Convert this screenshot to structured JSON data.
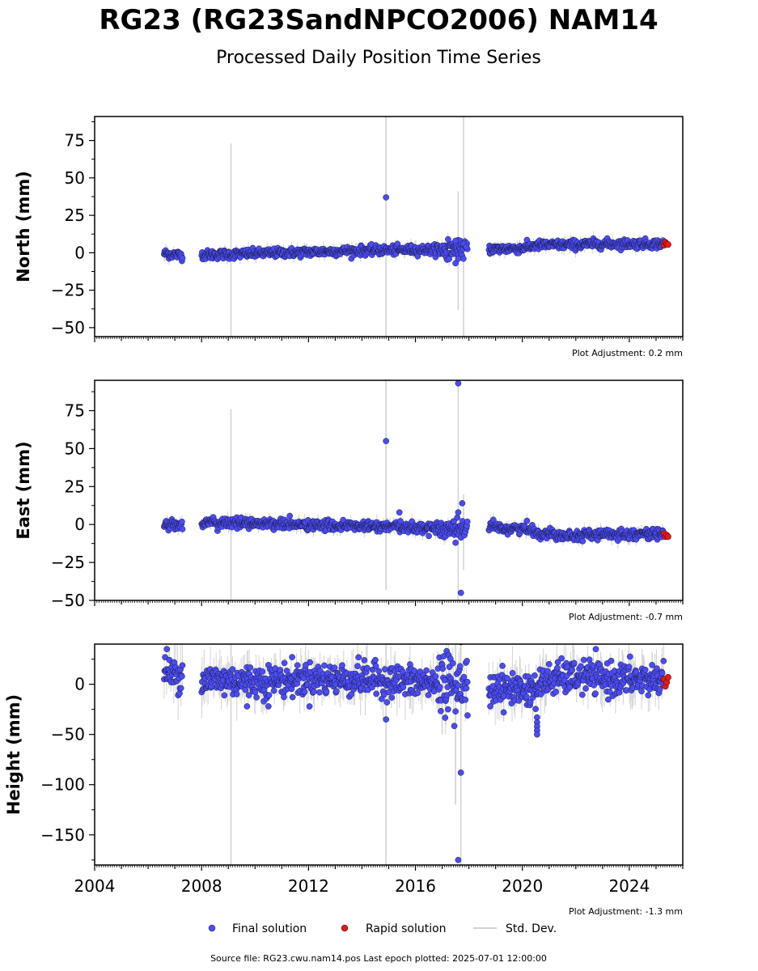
{
  "title": "RG23 (RG23SandNPCO2006) NAM14",
  "subtitle": "Processed Daily Position Time Series",
  "footer": "Source file: RG23.cwu.nam14.pos  Last epoch plotted: 2025-07-01 12:00:00",
  "legend": {
    "final": "Final solution",
    "rapid": "Rapid solution",
    "std": "Std. Dev."
  },
  "colors": {
    "final": "#4b4cf5",
    "rapid": "#e31a1c",
    "std": "#d3d3d3"
  },
  "chart_data": [
    {
      "type": "scatter",
      "ylabel": "North (mm)",
      "adjustment": "Plot Adjustment: 0.2 mm",
      "xlim": [
        2004,
        2026
      ],
      "ylim": [
        -56,
        91
      ],
      "yticks": [
        -50,
        -25,
        0,
        25,
        50,
        75
      ],
      "ytick_labels": [
        "−50",
        "−25",
        "0",
        "25",
        "50",
        "75"
      ],
      "final_trend": [
        {
          "x": 2006.6,
          "y": -0.5
        },
        {
          "x": 2007.5,
          "y": -2.0
        },
        {
          "x": 2008.0,
          "y": -1.5
        },
        {
          "x": 2010.0,
          "y": -0.5
        },
        {
          "x": 2012.0,
          "y": 0.5
        },
        {
          "x": 2014.0,
          "y": 1.5
        },
        {
          "x": 2016.0,
          "y": 2.0
        },
        {
          "x": 2017.9,
          "y": 2.5
        },
        {
          "x": 2018.8,
          "y": 2.5
        },
        {
          "x": 2020.0,
          "y": 3.0
        },
        {
          "x": 2020.5,
          "y": 5.0
        },
        {
          "x": 2022.0,
          "y": 5.5
        },
        {
          "x": 2023.0,
          "y": 6.0
        },
        {
          "x": 2025.3,
          "y": 6.0
        }
      ],
      "scatter_noise": 1.5,
      "gaps": [
        [
          2007.3,
          2008.0
        ],
        [
          2017.95,
          2018.75
        ]
      ],
      "outliers": [
        {
          "x": 2014.9,
          "y": 37
        },
        {
          "x": 2017.5,
          "y": 8
        },
        {
          "x": 2017.5,
          "y": -7
        },
        {
          "x": 2017.6,
          "y": -4
        },
        {
          "x": 2017.8,
          "y": 6
        },
        {
          "x": 2017.9,
          "y": 4
        }
      ],
      "rapid": [
        {
          "x": 2025.3,
          "y": 5
        },
        {
          "x": 2025.35,
          "y": 7
        },
        {
          "x": 2025.4,
          "y": 6
        },
        {
          "x": 2025.45,
          "y": 5.5
        }
      ],
      "std_spikes": [
        {
          "x": 2009.1,
          "low": -56,
          "high": 73
        },
        {
          "x": 2014.9,
          "low": -56,
          "high": 91
        },
        {
          "x": 2017.6,
          "low": -38,
          "high": 41
        },
        {
          "x": 2017.8,
          "low": -56,
          "high": 91
        }
      ]
    },
    {
      "type": "scatter",
      "ylabel": "East (mm)",
      "adjustment": "Plot Adjustment: -0.7 mm",
      "xlim": [
        2004,
        2026
      ],
      "ylim": [
        -50,
        95
      ],
      "yticks": [
        -50,
        -25,
        0,
        25,
        50,
        75
      ],
      "ytick_labels": [
        "−50",
        "−25",
        "0",
        "25",
        "50",
        "75"
      ],
      "final_trend": [
        {
          "x": 2006.6,
          "y": 0.0
        },
        {
          "x": 2007.5,
          "y": 0.0
        },
        {
          "x": 2008.0,
          "y": 1.0
        },
        {
          "x": 2010.0,
          "y": 1.0
        },
        {
          "x": 2012.0,
          "y": -0.5
        },
        {
          "x": 2014.0,
          "y": -1.0
        },
        {
          "x": 2016.0,
          "y": -2.0
        },
        {
          "x": 2017.9,
          "y": -3.0
        },
        {
          "x": 2018.8,
          "y": -2.0
        },
        {
          "x": 2020.3,
          "y": -3.0
        },
        {
          "x": 2020.6,
          "y": -6.0
        },
        {
          "x": 2022.0,
          "y": -7.0
        },
        {
          "x": 2023.0,
          "y": -6.5
        },
        {
          "x": 2025.3,
          "y": -6.0
        }
      ],
      "scatter_noise": 1.6,
      "gaps": [
        [
          2007.3,
          2008.0
        ],
        [
          2017.95,
          2018.75
        ]
      ],
      "outliers": [
        {
          "x": 2014.9,
          "y": 55
        },
        {
          "x": 2015.4,
          "y": 8
        },
        {
          "x": 2017.6,
          "y": 93
        },
        {
          "x": 2017.7,
          "y": -45
        },
        {
          "x": 2017.75,
          "y": 14
        },
        {
          "x": 2017.6,
          "y": 8
        },
        {
          "x": 2017.5,
          "y": -12
        }
      ],
      "rapid": [
        {
          "x": 2025.3,
          "y": -6
        },
        {
          "x": 2025.35,
          "y": -8
        },
        {
          "x": 2025.4,
          "y": -7
        },
        {
          "x": 2025.45,
          "y": -8
        }
      ],
      "std_spikes": [
        {
          "x": 2009.1,
          "low": -50,
          "high": 76
        },
        {
          "x": 2014.9,
          "low": -43,
          "high": 95
        },
        {
          "x": 2017.6,
          "low": -50,
          "high": 95
        },
        {
          "x": 2017.8,
          "low": -30,
          "high": 20
        }
      ]
    },
    {
      "type": "scatter",
      "ylabel": "Height (mm)",
      "adjustment": "Plot Adjustment: -1.3 mm",
      "xlim": [
        2004,
        2026
      ],
      "ylim": [
        -180,
        40
      ],
      "yticks": [
        -150,
        -100,
        -50,
        0
      ],
      "ytick_labels": [
        "−150",
        "−100",
        "−50",
        "0"
      ],
      "xticks": [
        2004,
        2008,
        2012,
        2016,
        2020,
        2024
      ],
      "xtick_labels": [
        "2004",
        "2008",
        "2012",
        "2016",
        "2020",
        "2024"
      ],
      "final_trend": [
        {
          "x": 2006.6,
          "y": 10
        },
        {
          "x": 2007.5,
          "y": 10
        },
        {
          "x": 2008.0,
          "y": 5
        },
        {
          "x": 2010.0,
          "y": 3
        },
        {
          "x": 2012.0,
          "y": 5
        },
        {
          "x": 2014.0,
          "y": 5
        },
        {
          "x": 2016.0,
          "y": 2
        },
        {
          "x": 2017.9,
          "y": 0
        },
        {
          "x": 2018.8,
          "y": -3
        },
        {
          "x": 2020.5,
          "y": -5
        },
        {
          "x": 2021.0,
          "y": 5
        },
        {
          "x": 2022.5,
          "y": 8
        },
        {
          "x": 2023.0,
          "y": 5
        },
        {
          "x": 2025.3,
          "y": 5
        }
      ],
      "scatter_noise": 8,
      "gaps": [
        [
          2007.3,
          2008.0
        ],
        [
          2017.95,
          2018.75
        ]
      ],
      "outliers": [
        {
          "x": 2006.7,
          "y": 35
        },
        {
          "x": 2014.9,
          "y": -35
        },
        {
          "x": 2017.7,
          "y": -88
        },
        {
          "x": 2017.6,
          "y": -175
        },
        {
          "x": 2017.95,
          "y": -31
        },
        {
          "x": 2018.8,
          "y": -22
        },
        {
          "x": 2019.3,
          "y": -28
        },
        {
          "x": 2020.55,
          "y": -33
        },
        {
          "x": 2020.55,
          "y": -38
        },
        {
          "x": 2020.55,
          "y": -42
        },
        {
          "x": 2020.55,
          "y": -46
        },
        {
          "x": 2020.55,
          "y": -50
        },
        {
          "x": 2009.7,
          "y": -22
        },
        {
          "x": 2010.5,
          "y": -22
        },
        {
          "x": 2017.5,
          "y": -27
        }
      ],
      "rapid": [
        {
          "x": 2025.3,
          "y": 5
        },
        {
          "x": 2025.35,
          "y": -2
        },
        {
          "x": 2025.4,
          "y": 2
        },
        {
          "x": 2025.45,
          "y": 7
        }
      ],
      "std_spikes": [
        {
          "x": 2009.1,
          "low": -180,
          "high": 40
        },
        {
          "x": 2014.9,
          "low": -180,
          "high": 40
        },
        {
          "x": 2017.5,
          "low": -120,
          "high": 40
        },
        {
          "x": 2017.7,
          "low": -180,
          "high": 40
        },
        {
          "x": 2017.0,
          "low": -50,
          "high": 30
        }
      ]
    }
  ]
}
